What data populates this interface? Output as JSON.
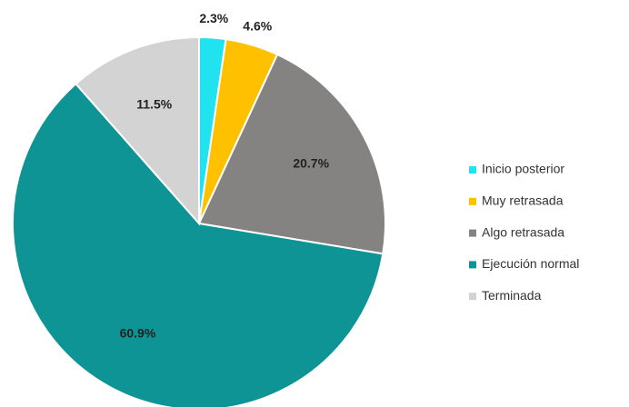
{
  "chart_data": {
    "type": "pie",
    "categories": [
      "Inicio posterior",
      "Muy retrasada",
      "Algo retrasada",
      "Ejecución normal",
      "Terminada"
    ],
    "values": [
      2.3,
      4.6,
      20.7,
      60.9,
      11.5
    ],
    "value_labels": [
      "2.3%",
      "4.6%",
      "20.7%",
      "60.9%",
      "11.5%"
    ],
    "colors": [
      "#20e3ef",
      "#ffc000",
      "#858282",
      "#0e9494",
      "#d3d3d3"
    ],
    "legend": "right"
  }
}
